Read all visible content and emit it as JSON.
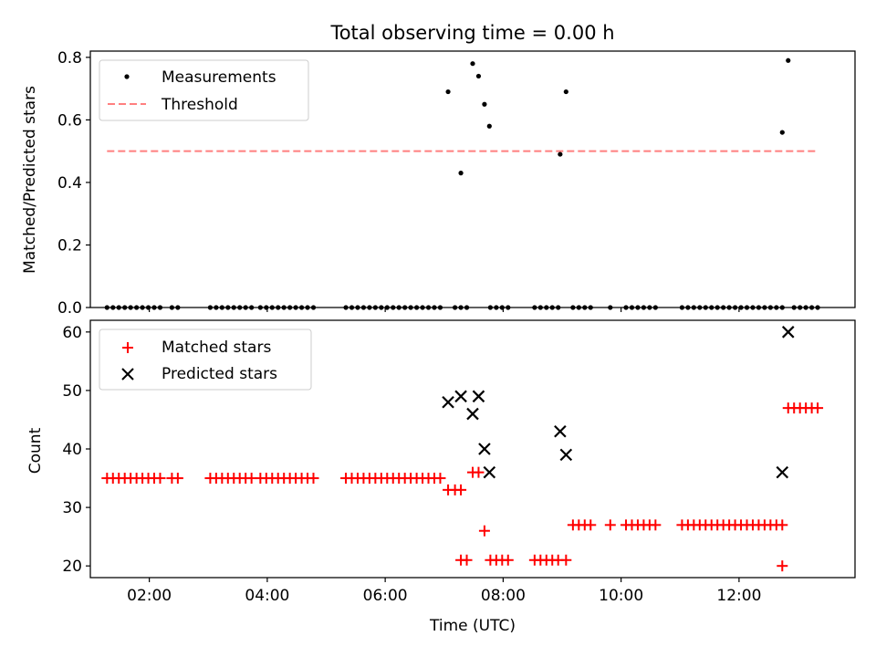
{
  "chart_data": [
    {
      "type": "scatter",
      "title": "Total observing time = 0.00 h",
      "xlabel": "",
      "ylabel": "Matched/Predicted stars",
      "xlim": [
        "01:00",
        "13:58"
      ],
      "ylim": [
        0,
        0.82
      ],
      "yticks": [
        0.0,
        0.2,
        0.4,
        0.6,
        0.8
      ],
      "ytick_labels": [
        "0.0",
        "0.2",
        "0.4",
        "0.6",
        "0.8"
      ],
      "grid": false,
      "legend_position": "upper-left",
      "legend": [
        "Measurements",
        "Threshold"
      ],
      "series": [
        {
          "name": "Measurements",
          "marker": "dot",
          "color": "#000000",
          "points": [
            [
              "07:04",
              0.69
            ],
            [
              "07:17",
              0.43
            ],
            [
              "07:29",
              0.78
            ],
            [
              "07:35",
              0.74
            ],
            [
              "07:41",
              0.65
            ],
            [
              "07:46",
              0.58
            ],
            [
              "08:58",
              0.49
            ],
            [
              "09:04",
              0.69
            ],
            [
              "12:44",
              0.56
            ],
            [
              "12:50",
              0.79
            ]
          ],
          "zero_times": [
            "01:17",
            "01:23",
            "01:29",
            "01:35",
            "01:41",
            "01:47",
            "01:53",
            "01:59",
            "02:05",
            "02:11",
            "02:23",
            "02:29",
            "03:02",
            "03:08",
            "03:14",
            "03:20",
            "03:26",
            "03:32",
            "03:38",
            "03:44",
            "03:53",
            "03:59",
            "04:05",
            "04:11",
            "04:17",
            "04:23",
            "04:29",
            "04:35",
            "04:41",
            "04:47",
            "05:20",
            "05:26",
            "05:32",
            "05:38",
            "05:44",
            "05:50",
            "05:56",
            "06:02",
            "06:08",
            "06:14",
            "06:20",
            "06:26",
            "06:32",
            "06:38",
            "06:44",
            "06:50",
            "06:56",
            "07:11",
            "07:17",
            "07:23",
            "07:47",
            "07:53",
            "07:59",
            "08:05",
            "08:32",
            "08:38",
            "08:44",
            "08:50",
            "08:56",
            "09:11",
            "09:17",
            "09:23",
            "09:29",
            "09:49",
            "10:05",
            "10:11",
            "10:17",
            "10:23",
            "10:29",
            "10:35",
            "11:02",
            "11:08",
            "11:14",
            "11:20",
            "11:26",
            "11:32",
            "11:38",
            "11:44",
            "11:50",
            "11:56",
            "12:02",
            "12:08",
            "12:14",
            "12:20",
            "12:26",
            "12:32",
            "12:38",
            "12:44",
            "12:56",
            "13:02",
            "13:08",
            "13:14",
            "13:20"
          ]
        },
        {
          "name": "Threshold",
          "style": "dashed",
          "color": "#ff7f7f",
          "x": [
            "01:17",
            "13:20"
          ],
          "y": [
            0.5,
            0.5
          ]
        }
      ]
    },
    {
      "type": "scatter",
      "title": "",
      "xlabel": "Time (UTC)",
      "ylabel": "Count",
      "xlim": [
        "01:00",
        "13:58"
      ],
      "ylim": [
        18,
        62
      ],
      "yticks": [
        20,
        30,
        40,
        50,
        60
      ],
      "ytick_labels": [
        "20",
        "30",
        "40",
        "50",
        "60"
      ],
      "xticks": [
        "02:00",
        "04:00",
        "06:00",
        "08:00",
        "10:00",
        "12:00"
      ],
      "xtick_labels": [
        "02:00",
        "04:00",
        "06:00",
        "08:00",
        "10:00",
        "12:00"
      ],
      "grid": false,
      "legend_position": "upper-left",
      "legend": [
        "Matched stars",
        "Predicted stars"
      ],
      "series": [
        {
          "name": "Matched stars",
          "marker": "plus",
          "color": "#ff0000",
          "groups": [
            {
              "value": 35,
              "times": [
                "01:17",
                "01:23",
                "01:29",
                "01:35",
                "01:41",
                "01:47",
                "01:53",
                "01:59",
                "02:05",
                "02:11",
                "02:23",
                "02:29",
                "03:02",
                "03:08",
                "03:14",
                "03:20",
                "03:26",
                "03:32",
                "03:38",
                "03:44",
                "03:53",
                "03:59",
                "04:05",
                "04:11",
                "04:17",
                "04:23",
                "04:29",
                "04:35",
                "04:41",
                "04:47",
                "05:20",
                "05:26",
                "05:32",
                "05:38",
                "05:44",
                "05:50",
                "05:56",
                "06:02",
                "06:08",
                "06:14",
                "06:20",
                "06:26",
                "06:32",
                "06:38",
                "06:44",
                "06:50",
                "06:56"
              ]
            },
            {
              "value": 33,
              "times": [
                "07:04",
                "07:11",
                "07:17"
              ]
            },
            {
              "value": 21,
              "times": [
                "07:17",
                "07:23",
                "07:47",
                "07:53",
                "07:59",
                "08:05",
                "08:32",
                "08:38",
                "08:44",
                "08:50",
                "08:56",
                "09:04"
              ]
            },
            {
              "value": 36,
              "times": [
                "07:29",
                "07:35"
              ]
            },
            {
              "value": 26,
              "times": [
                "07:41"
              ]
            },
            {
              "value": 27,
              "times": [
                "09:11",
                "09:17",
                "09:23",
                "09:29",
                "09:49",
                "10:05",
                "10:11",
                "10:17",
                "10:23",
                "10:29",
                "10:35",
                "11:02",
                "11:08",
                "11:14",
                "11:20",
                "11:26",
                "11:32",
                "11:38",
                "11:44",
                "11:50",
                "11:56",
                "12:02",
                "12:08",
                "12:14",
                "12:20",
                "12:26",
                "12:32",
                "12:38",
                "12:44"
              ]
            },
            {
              "value": 20,
              "times": [
                "12:44"
              ]
            },
            {
              "value": 47,
              "times": [
                "12:50",
                "12:56",
                "13:02",
                "13:08",
                "13:14",
                "13:20"
              ]
            }
          ]
        },
        {
          "name": "Predicted stars",
          "marker": "x",
          "color": "#000000",
          "points": [
            [
              "07:04",
              48
            ],
            [
              "07:17",
              49
            ],
            [
              "07:29",
              46
            ],
            [
              "07:35",
              49
            ],
            [
              "07:41",
              40
            ],
            [
              "07:46",
              36
            ],
            [
              "08:58",
              43
            ],
            [
              "09:04",
              39
            ],
            [
              "12:44",
              36
            ],
            [
              "12:50",
              60
            ]
          ]
        }
      ]
    }
  ]
}
